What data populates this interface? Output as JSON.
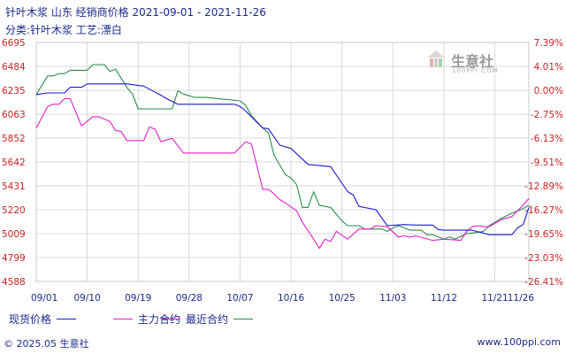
{
  "header": {
    "title": "针叶木浆 山东 经销商价格 2021-09-01 - 2021-11-26",
    "subtitle": "分类:针叶木浆 工艺:漂白"
  },
  "watermark": {
    "name": "生意社",
    "url": "100PPI.COM"
  },
  "footer": {
    "copyright": "© 2025.05 生意社",
    "site": "www.100ppi.com"
  },
  "colors": {
    "spot": "#1a1acc",
    "main": "#e01ecc",
    "recent": "#2a8a4a",
    "left_axis": "#cc2222",
    "right_axis": "#cc2222",
    "text": "#1a2a8a"
  },
  "chart_data": {
    "type": "line",
    "x_labels": [
      "09/01",
      "09/10",
      "09/19",
      "09/28",
      "10/07",
      "10/16",
      "10/25",
      "11/03",
      "11/12",
      "11/21",
      "11/26"
    ],
    "x_range": [
      "2021-09-01",
      "2021-11-26"
    ],
    "y_left_ticks": [
      "6695",
      "6484",
      "6235",
      "6063",
      "5852",
      "5642",
      "5431",
      "5220",
      "5009",
      "4799",
      "4588"
    ],
    "y_right_ticks": [
      "7.39%",
      "4.01%",
      "0.00%",
      "-2.75%",
      "-6.13%",
      "-9.51%",
      "-12.89%",
      "-16.27%",
      "-19.65%",
      "-23.03%",
      "-26.41%"
    ],
    "y_left_range": [
      4588,
      6695
    ],
    "grid": true,
    "legend_position": "bottom",
    "series": [
      {
        "name": "现货价格",
        "color_key": "spot",
        "points": [
          [
            0,
            6235
          ],
          [
            2,
            6250
          ],
          [
            5,
            6250
          ],
          [
            6,
            6300
          ],
          [
            8,
            6300
          ],
          [
            9,
            6330
          ],
          [
            16,
            6330
          ],
          [
            19,
            6310
          ],
          [
            22,
            6230
          ],
          [
            23,
            6200
          ],
          [
            25,
            6150
          ],
          [
            35,
            6150
          ],
          [
            36,
            6130
          ],
          [
            37,
            6090
          ],
          [
            40,
            5940
          ],
          [
            41,
            5935
          ],
          [
            43,
            5790
          ],
          [
            45,
            5760
          ],
          [
            48,
            5620
          ],
          [
            52,
            5600
          ],
          [
            55,
            5380
          ],
          [
            56,
            5350
          ],
          [
            57,
            5250
          ],
          [
            60,
            5220
          ],
          [
            62,
            5080
          ],
          [
            65,
            5090
          ],
          [
            67,
            5085
          ],
          [
            70,
            5085
          ],
          [
            71,
            5045
          ],
          [
            72,
            5040
          ],
          [
            77,
            5040
          ],
          [
            80,
            5000
          ],
          [
            84,
            5000
          ],
          [
            85,
            5060
          ],
          [
            86,
            5090
          ],
          [
            87,
            5240
          ]
        ]
      },
      {
        "name": "主力合约",
        "color_key": "main",
        "points": [
          [
            0,
            5940
          ],
          [
            2,
            6130
          ],
          [
            3,
            6150
          ],
          [
            4,
            6150
          ],
          [
            5,
            6200
          ],
          [
            6,
            6200
          ],
          [
            7,
            6080
          ],
          [
            8,
            5960
          ],
          [
            10,
            6040
          ],
          [
            11,
            6040
          ],
          [
            13,
            6000
          ],
          [
            14,
            5920
          ],
          [
            15,
            5910
          ],
          [
            16,
            5830
          ],
          [
            19,
            5830
          ],
          [
            20,
            5950
          ],
          [
            21,
            5930
          ],
          [
            22,
            5820
          ],
          [
            24,
            5850
          ],
          [
            26,
            5720
          ],
          [
            35,
            5720
          ],
          [
            37,
            5820
          ],
          [
            38,
            5800
          ],
          [
            39,
            5600
          ],
          [
            40,
            5400
          ],
          [
            41,
            5400
          ],
          [
            42,
            5360
          ],
          [
            43,
            5310
          ],
          [
            44,
            5280
          ],
          [
            46,
            5210
          ],
          [
            47,
            5110
          ],
          [
            49,
            4960
          ],
          [
            50,
            4880
          ],
          [
            51,
            4960
          ],
          [
            52,
            4940
          ],
          [
            53,
            5030
          ],
          [
            55,
            4960
          ],
          [
            57,
            5050
          ],
          [
            58,
            5050
          ],
          [
            59,
            5050
          ],
          [
            60,
            5080
          ],
          [
            62,
            5070
          ],
          [
            64,
            4980
          ],
          [
            65,
            4990
          ],
          [
            66,
            4980
          ],
          [
            67,
            4990
          ],
          [
            70,
            4950
          ],
          [
            72,
            4960
          ],
          [
            75,
            4950
          ],
          [
            76,
            5030
          ],
          [
            77,
            5070
          ],
          [
            78,
            5080
          ],
          [
            79,
            5070
          ],
          [
            80,
            5070
          ],
          [
            82,
            5130
          ],
          [
            84,
            5160
          ],
          [
            86,
            5260
          ],
          [
            87,
            5320
          ]
        ]
      },
      {
        "name": "最近合约",
        "color_key": "recent",
        "points": [
          [
            0,
            6235
          ],
          [
            2,
            6400
          ],
          [
            3,
            6400
          ],
          [
            4,
            6420
          ],
          [
            5,
            6420
          ],
          [
            6,
            6450
          ],
          [
            9,
            6450
          ],
          [
            10,
            6500
          ],
          [
            12,
            6500
          ],
          [
            13,
            6440
          ],
          [
            14,
            6460
          ],
          [
            16,
            6300
          ],
          [
            17,
            6240
          ],
          [
            18,
            6110
          ],
          [
            24,
            6110
          ],
          [
            25,
            6270
          ],
          [
            26,
            6240
          ],
          [
            28,
            6210
          ],
          [
            30,
            6210
          ],
          [
            36,
            6180
          ],
          [
            37,
            6140
          ],
          [
            38,
            6050
          ],
          [
            40,
            5940
          ],
          [
            41,
            5900
          ],
          [
            42,
            5700
          ],
          [
            44,
            5530
          ],
          [
            45,
            5500
          ],
          [
            46,
            5440
          ],
          [
            47,
            5240
          ],
          [
            48,
            5240
          ],
          [
            49,
            5380
          ],
          [
            50,
            5260
          ],
          [
            52,
            5240
          ],
          [
            54,
            5120
          ],
          [
            55,
            5080
          ],
          [
            57,
            5080
          ],
          [
            58,
            5050
          ],
          [
            61,
            5050
          ],
          [
            62,
            5030
          ],
          [
            63,
            5060
          ],
          [
            64,
            5080
          ],
          [
            66,
            5040
          ],
          [
            68,
            5040
          ],
          [
            69,
            5000
          ],
          [
            70,
            5000
          ],
          [
            72,
            4960
          ],
          [
            73,
            4980
          ],
          [
            74,
            4960
          ],
          [
            76,
            5010
          ],
          [
            78,
            5020
          ],
          [
            79,
            5030
          ],
          [
            80,
            5080
          ],
          [
            82,
            5140
          ],
          [
            84,
            5190
          ],
          [
            86,
            5230
          ],
          [
            87,
            5260
          ]
        ]
      }
    ]
  }
}
